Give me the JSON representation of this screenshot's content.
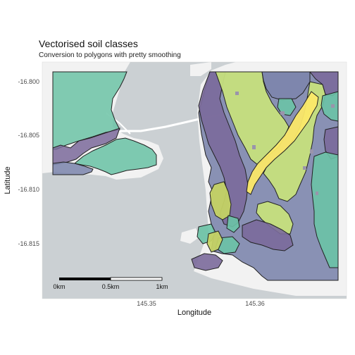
{
  "header": {
    "title": "Vectorised soil classes",
    "subtitle": "Conversion to polygons with pretty smoothing"
  },
  "axes": {
    "xlabel": "Longitude",
    "ylabel": "Latitude",
    "x_ticks": [
      "145.35",
      "145.36"
    ],
    "y_ticks": [
      "-16.800",
      "-16.805",
      "-16.810",
      "-16.815"
    ]
  },
  "scalebar": {
    "labels": [
      "0km",
      "0.5km",
      "1km"
    ]
  },
  "colors": {
    "water": "#cbd0d3",
    "land": "#f2f2f2",
    "road": "#ffffff",
    "class_purple": "#7b6a9b",
    "class_slate": "#7d86ad",
    "class_teal": "#6cc3a6",
    "class_green": "#c6e07d",
    "class_yellow": "#fbe868",
    "class_olive": "#c4d264"
  }
}
